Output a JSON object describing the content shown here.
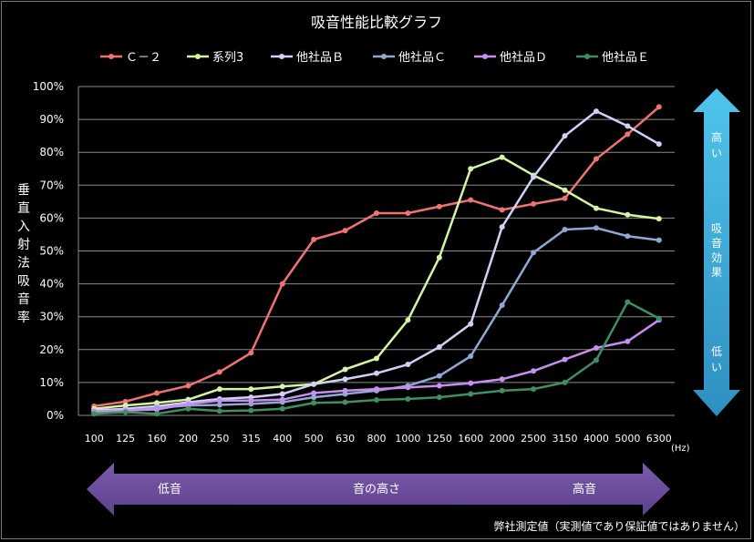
{
  "chart_data": {
    "type": "line",
    "title": "吸音性能比較グラフ",
    "ylabel": "垂直入射法吸音率",
    "xunit": "(Hz)",
    "categories": [
      "100",
      "125",
      "160",
      "200",
      "250",
      "315",
      "400",
      "500",
      "630",
      "800",
      "1000",
      "1250",
      "1600",
      "2000",
      "2500",
      "3150",
      "4000",
      "5000",
      "6300"
    ],
    "yticks": [
      "0%",
      "10%",
      "20%",
      "30%",
      "40%",
      "50%",
      "60%",
      "70%",
      "80%",
      "90%",
      "100%"
    ],
    "ylim": [
      0,
      100
    ],
    "grid": true,
    "legend": "top",
    "series": [
      {
        "name": "Ｃ－２",
        "color": "#f07372",
        "values": [
          2.8,
          4.2,
          6.8,
          9,
          13.2,
          19,
          40,
          53.5,
          56.2,
          61.5,
          61.5,
          63.5,
          65.5,
          62.5,
          64.3,
          66,
          78,
          85.5,
          93.8
        ]
      },
      {
        "name": "系列3",
        "color": "#d6f5a3",
        "values": [
          2,
          3,
          3.8,
          4.8,
          8,
          8,
          8.8,
          9.5,
          14,
          17.3,
          29,
          48,
          75,
          78.5,
          73,
          68.5,
          63,
          61,
          59.8
        ]
      },
      {
        "name": "他社品Ｂ",
        "color": "#cfd2f5",
        "values": [
          1.5,
          2,
          2.8,
          4,
          5,
          5.5,
          6.5,
          9.5,
          11,
          12.8,
          15.5,
          20.8,
          27.8,
          57.3,
          72.5,
          85,
          92.5,
          88,
          82.5
        ]
      },
      {
        "name": "他社品Ｃ",
        "color": "#8fa8d2",
        "values": [
          1.2,
          1.5,
          2.3,
          3,
          3.2,
          3.5,
          4,
          5.5,
          6.5,
          7.5,
          9,
          12,
          18,
          33.5,
          49.5,
          56.5,
          57,
          54.5,
          53.3
        ]
      },
      {
        "name": "他社品Ｄ",
        "color": "#c88ef0",
        "values": [
          1,
          1.5,
          1.8,
          3.5,
          4.5,
          4.5,
          4.8,
          6.8,
          7.5,
          8,
          8.5,
          9,
          9.8,
          11,
          13.5,
          17,
          20.5,
          22.5,
          29
        ]
      },
      {
        "name": "他社品Ｅ",
        "color": "#3e8f62",
        "values": [
          0.5,
          1,
          0.5,
          2,
          1.3,
          1.5,
          2,
          3.8,
          4,
          4.7,
          5,
          5.5,
          6.5,
          7.5,
          8,
          10,
          16.8,
          34.5,
          29.5
        ]
      }
    ],
    "right_arrow": {
      "top": "高い",
      "middle": "吸音効果",
      "bottom": "低い",
      "color": "#3aa8d8"
    },
    "bottom_arrow": {
      "left": "低音",
      "middle": "音の高さ",
      "right": "高音",
      "color": "#6d4f9c"
    },
    "footnote": "弊社測定値（実測値であり保証値ではありません）"
  }
}
